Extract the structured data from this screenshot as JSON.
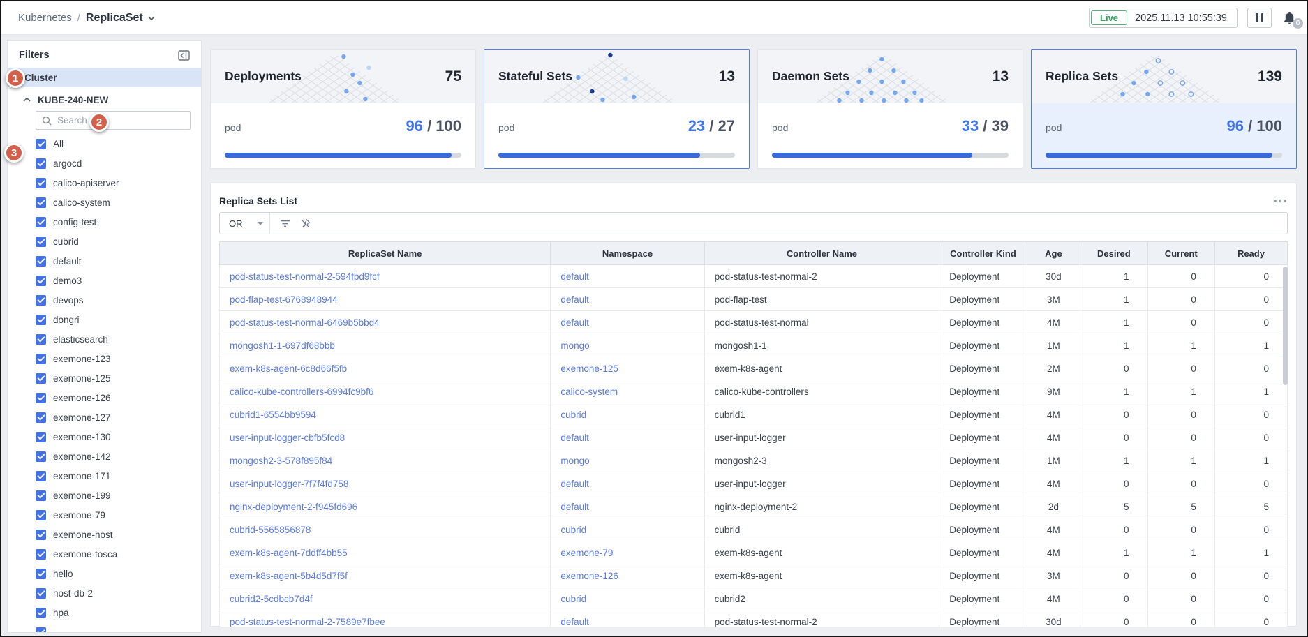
{
  "topbar": {
    "breadcrumb_root": "Kubernetes",
    "separator": "/",
    "page_title": "ReplicaSet",
    "live_label": "Live",
    "timestamp": "2025.11.13 10:55:39",
    "notification_count": "0"
  },
  "sidebar": {
    "title": "Filters",
    "cluster_section": "Cluster",
    "cluster_name": "KUBE-240-NEW",
    "search_placeholder": "Search",
    "namespaces": [
      "All",
      "argocd",
      "calico-apiserver",
      "calico-system",
      "config-test",
      "cubrid",
      "default",
      "demo3",
      "devops",
      "dongri",
      "elasticsearch",
      "exemone-123",
      "exemone-125",
      "exemone-126",
      "exemone-127",
      "exemone-130",
      "exemone-142",
      "exemone-171",
      "exemone-199",
      "exemone-79",
      "exemone-host",
      "exemone-tosca",
      "hello",
      "host-db-2",
      "hpa"
    ]
  },
  "annotations": {
    "step1": "1",
    "step2": "2",
    "step3": "3"
  },
  "cards": [
    {
      "title": "Deployments",
      "count": "75",
      "pod_label": "pod",
      "current": "96",
      "total": "100",
      "selected": false,
      "highlight": false
    },
    {
      "title": "Stateful Sets",
      "count": "13",
      "pod_label": "pod",
      "current": "23",
      "total": "27",
      "selected": true,
      "highlight": false
    },
    {
      "title": "Daemon Sets",
      "count": "13",
      "pod_label": "pod",
      "current": "33",
      "total": "39",
      "selected": false,
      "highlight": false
    },
    {
      "title": "Replica Sets",
      "count": "139",
      "pod_label": "pod",
      "current": "96",
      "total": "100",
      "selected": true,
      "highlight": true
    }
  ],
  "list": {
    "title": "Replica Sets List",
    "filter_operator": "OR",
    "columns": [
      "ReplicaSet Name",
      "Namespace",
      "Controller Name",
      "Controller Kind",
      "Age",
      "Desired",
      "Current",
      "Ready"
    ],
    "rows": [
      [
        "pod-status-test-normal-2-594fbd9fcf",
        "default",
        "pod-status-test-normal-2",
        "Deployment",
        "30d",
        "1",
        "0",
        "0"
      ],
      [
        "pod-flap-test-6768948944",
        "default",
        "pod-flap-test",
        "Deployment",
        "3M",
        "1",
        "0",
        "0"
      ],
      [
        "pod-status-test-normal-6469b5bbd4",
        "default",
        "pod-status-test-normal",
        "Deployment",
        "4M",
        "1",
        "0",
        "0"
      ],
      [
        "mongosh1-1-697df68bbb",
        "mongo",
        "mongosh1-1",
        "Deployment",
        "1M",
        "1",
        "1",
        "1"
      ],
      [
        "exem-k8s-agent-6c8d66f5fb",
        "exemone-125",
        "exem-k8s-agent",
        "Deployment",
        "2M",
        "0",
        "0",
        "0"
      ],
      [
        "calico-kube-controllers-6994fc9bf6",
        "calico-system",
        "calico-kube-controllers",
        "Deployment",
        "9M",
        "1",
        "1",
        "1"
      ],
      [
        "cubrid1-6554bb9594",
        "cubrid",
        "cubrid1",
        "Deployment",
        "4M",
        "0",
        "0",
        "0"
      ],
      [
        "user-input-logger-cbfb5fcd8",
        "default",
        "user-input-logger",
        "Deployment",
        "4M",
        "0",
        "0",
        "0"
      ],
      [
        "mongosh2-3-578f895f84",
        "mongo",
        "mongosh2-3",
        "Deployment",
        "1M",
        "1",
        "1",
        "1"
      ],
      [
        "user-input-logger-7f7f4fd758",
        "default",
        "user-input-logger",
        "Deployment",
        "4M",
        "0",
        "0",
        "0"
      ],
      [
        "nginx-deployment-2-f945fd696",
        "default",
        "nginx-deployment-2",
        "Deployment",
        "2d",
        "5",
        "5",
        "5"
      ],
      [
        "cubrid-5565856878",
        "cubrid",
        "cubrid",
        "Deployment",
        "4M",
        "0",
        "0",
        "0"
      ],
      [
        "exem-k8s-agent-7ddff4bb55",
        "exemone-79",
        "exem-k8s-agent",
        "Deployment",
        "4M",
        "1",
        "1",
        "1"
      ],
      [
        "exem-k8s-agent-5b4d5d7f5f",
        "exemone-126",
        "exem-k8s-agent",
        "Deployment",
        "3M",
        "0",
        "0",
        "0"
      ],
      [
        "cubrid2-5cdbcb7d4f",
        "cubrid",
        "cubrid2",
        "Deployment",
        "4M",
        "0",
        "0",
        "0"
      ],
      [
        "pod-status-test-normal-2-7589e7fbee",
        "default",
        "pod-status-test-normal-2",
        "Deployment",
        "30d",
        "0",
        "0",
        "0"
      ]
    ]
  },
  "colors": {
    "accent_blue": "#4076e8",
    "link_blue": "#5a7ce2",
    "live_green": "#2f9e5b",
    "annotation_orange": "#d2604a",
    "checkbox_blue": "#4472e4",
    "progress_fill": "#3a6bdb",
    "selected_border": "#4d7de6"
  }
}
